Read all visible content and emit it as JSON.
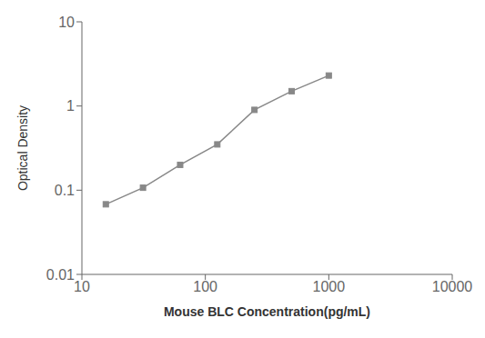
{
  "chart_data": {
    "type": "line",
    "x": [
      15.625,
      31.25,
      62.5,
      125,
      250,
      500,
      1000
    ],
    "values": [
      0.068,
      0.107,
      0.2,
      0.35,
      0.9,
      1.5,
      2.3
    ],
    "xlabel": "Mouse BLC Concentration(pg/mL)",
    "ylabel": "Optical Density",
    "xlim": [
      10,
      10000
    ],
    "ylim": [
      0.01,
      10
    ],
    "xticks": [
      10,
      100,
      1000,
      10000
    ],
    "yticks": [
      0.01,
      0.1,
      1,
      10
    ],
    "log": true,
    "grid": false,
    "color": "#888888",
    "marker": "square"
  }
}
